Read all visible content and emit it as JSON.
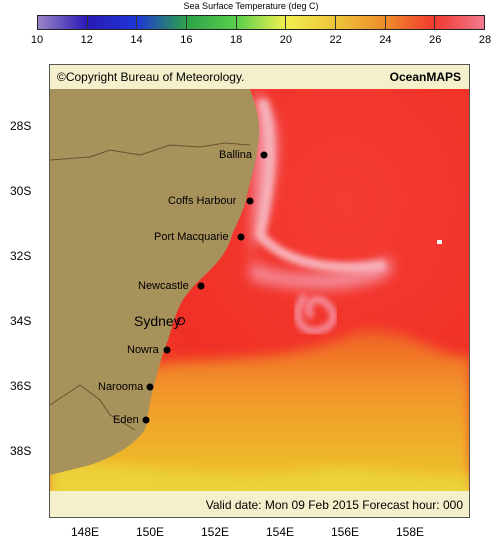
{
  "colorbar": {
    "title": "Sea Surface Temperature (deg C)",
    "ticks": [
      "10",
      "12",
      "14",
      "16",
      "18",
      "20",
      "22",
      "24",
      "26",
      "28"
    ],
    "colors": [
      "#9a84c8",
      "#2a1ab6",
      "#1e36d6",
      "#2ca24a",
      "#5ad04c",
      "#f0f050",
      "#eec43a",
      "#ee8c2a",
      "#f03a30",
      "#f27a8e"
    ]
  },
  "map": {
    "copyright": "©Copyright Bureau of Meteorology.",
    "brand": "OceanMAPS",
    "valid_text": "Valid date: Mon 09 Feb 2015 Forecast hour: 000",
    "lat_labels": [
      "28S",
      "30S",
      "32S",
      "34S",
      "36S",
      "38S"
    ],
    "lon_labels": [
      "148E",
      "150E",
      "152E",
      "154E",
      "156E",
      "158E"
    ],
    "cities": [
      "Ballina",
      "Coffs Harbour",
      "Port Macquarie",
      "Newcastle",
      "Sydney",
      "Nowra",
      "Narooma",
      "Eden"
    ],
    "land_color": "#a8925c"
  }
}
